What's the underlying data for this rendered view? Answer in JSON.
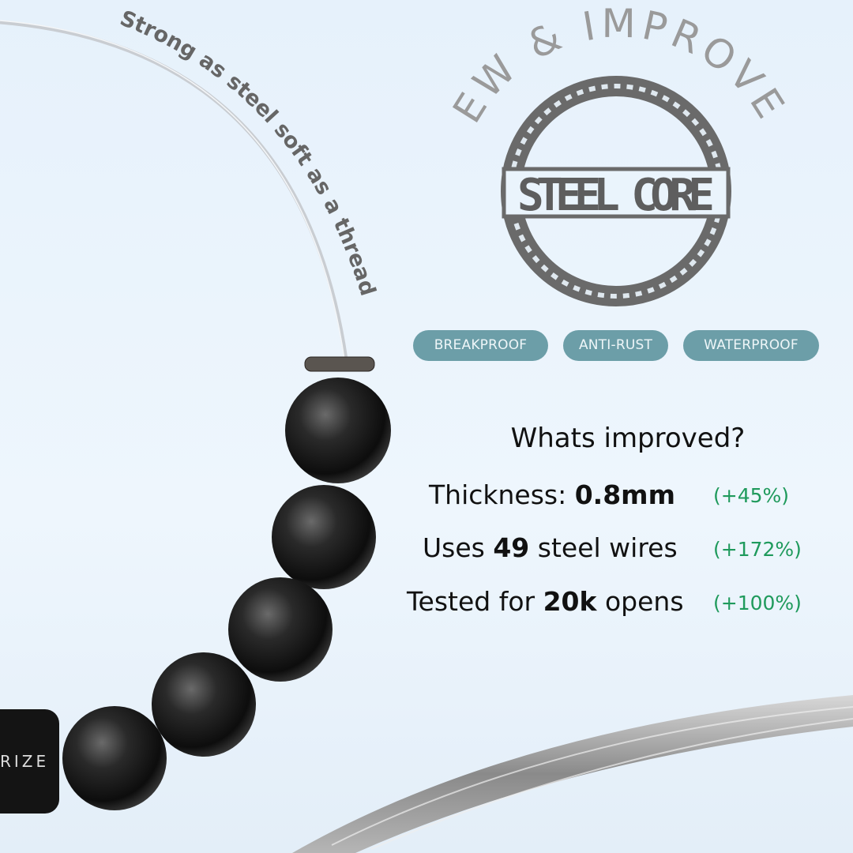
{
  "tagline": "Strong as steel soft as a thread",
  "badge": {
    "arc_text": "NEW & IMPROVED",
    "core_text": "STEEL CORE",
    "ring_color": "#6a6a6a"
  },
  "clasp_text": "RIZE",
  "features": [
    "BREAKPROOF",
    "ANTI-RUST",
    "WATERPROOF"
  ],
  "improvements": {
    "heading": "Whats improved?",
    "rows": [
      {
        "prefix": "Thickness: ",
        "value": "0.8mm",
        "suffix": "",
        "change": "(+45%)"
      },
      {
        "prefix": "Uses ",
        "value": "49",
        "suffix": " steel wires",
        "change": "(+172%)"
      },
      {
        "prefix": "Tested for ",
        "value": "20k",
        "suffix": " opens",
        "change": "(+100%)"
      }
    ]
  },
  "colors": {
    "pill": "#6c9ea8",
    "positive": "#1f9a5c",
    "background": "#eaf4fc"
  }
}
